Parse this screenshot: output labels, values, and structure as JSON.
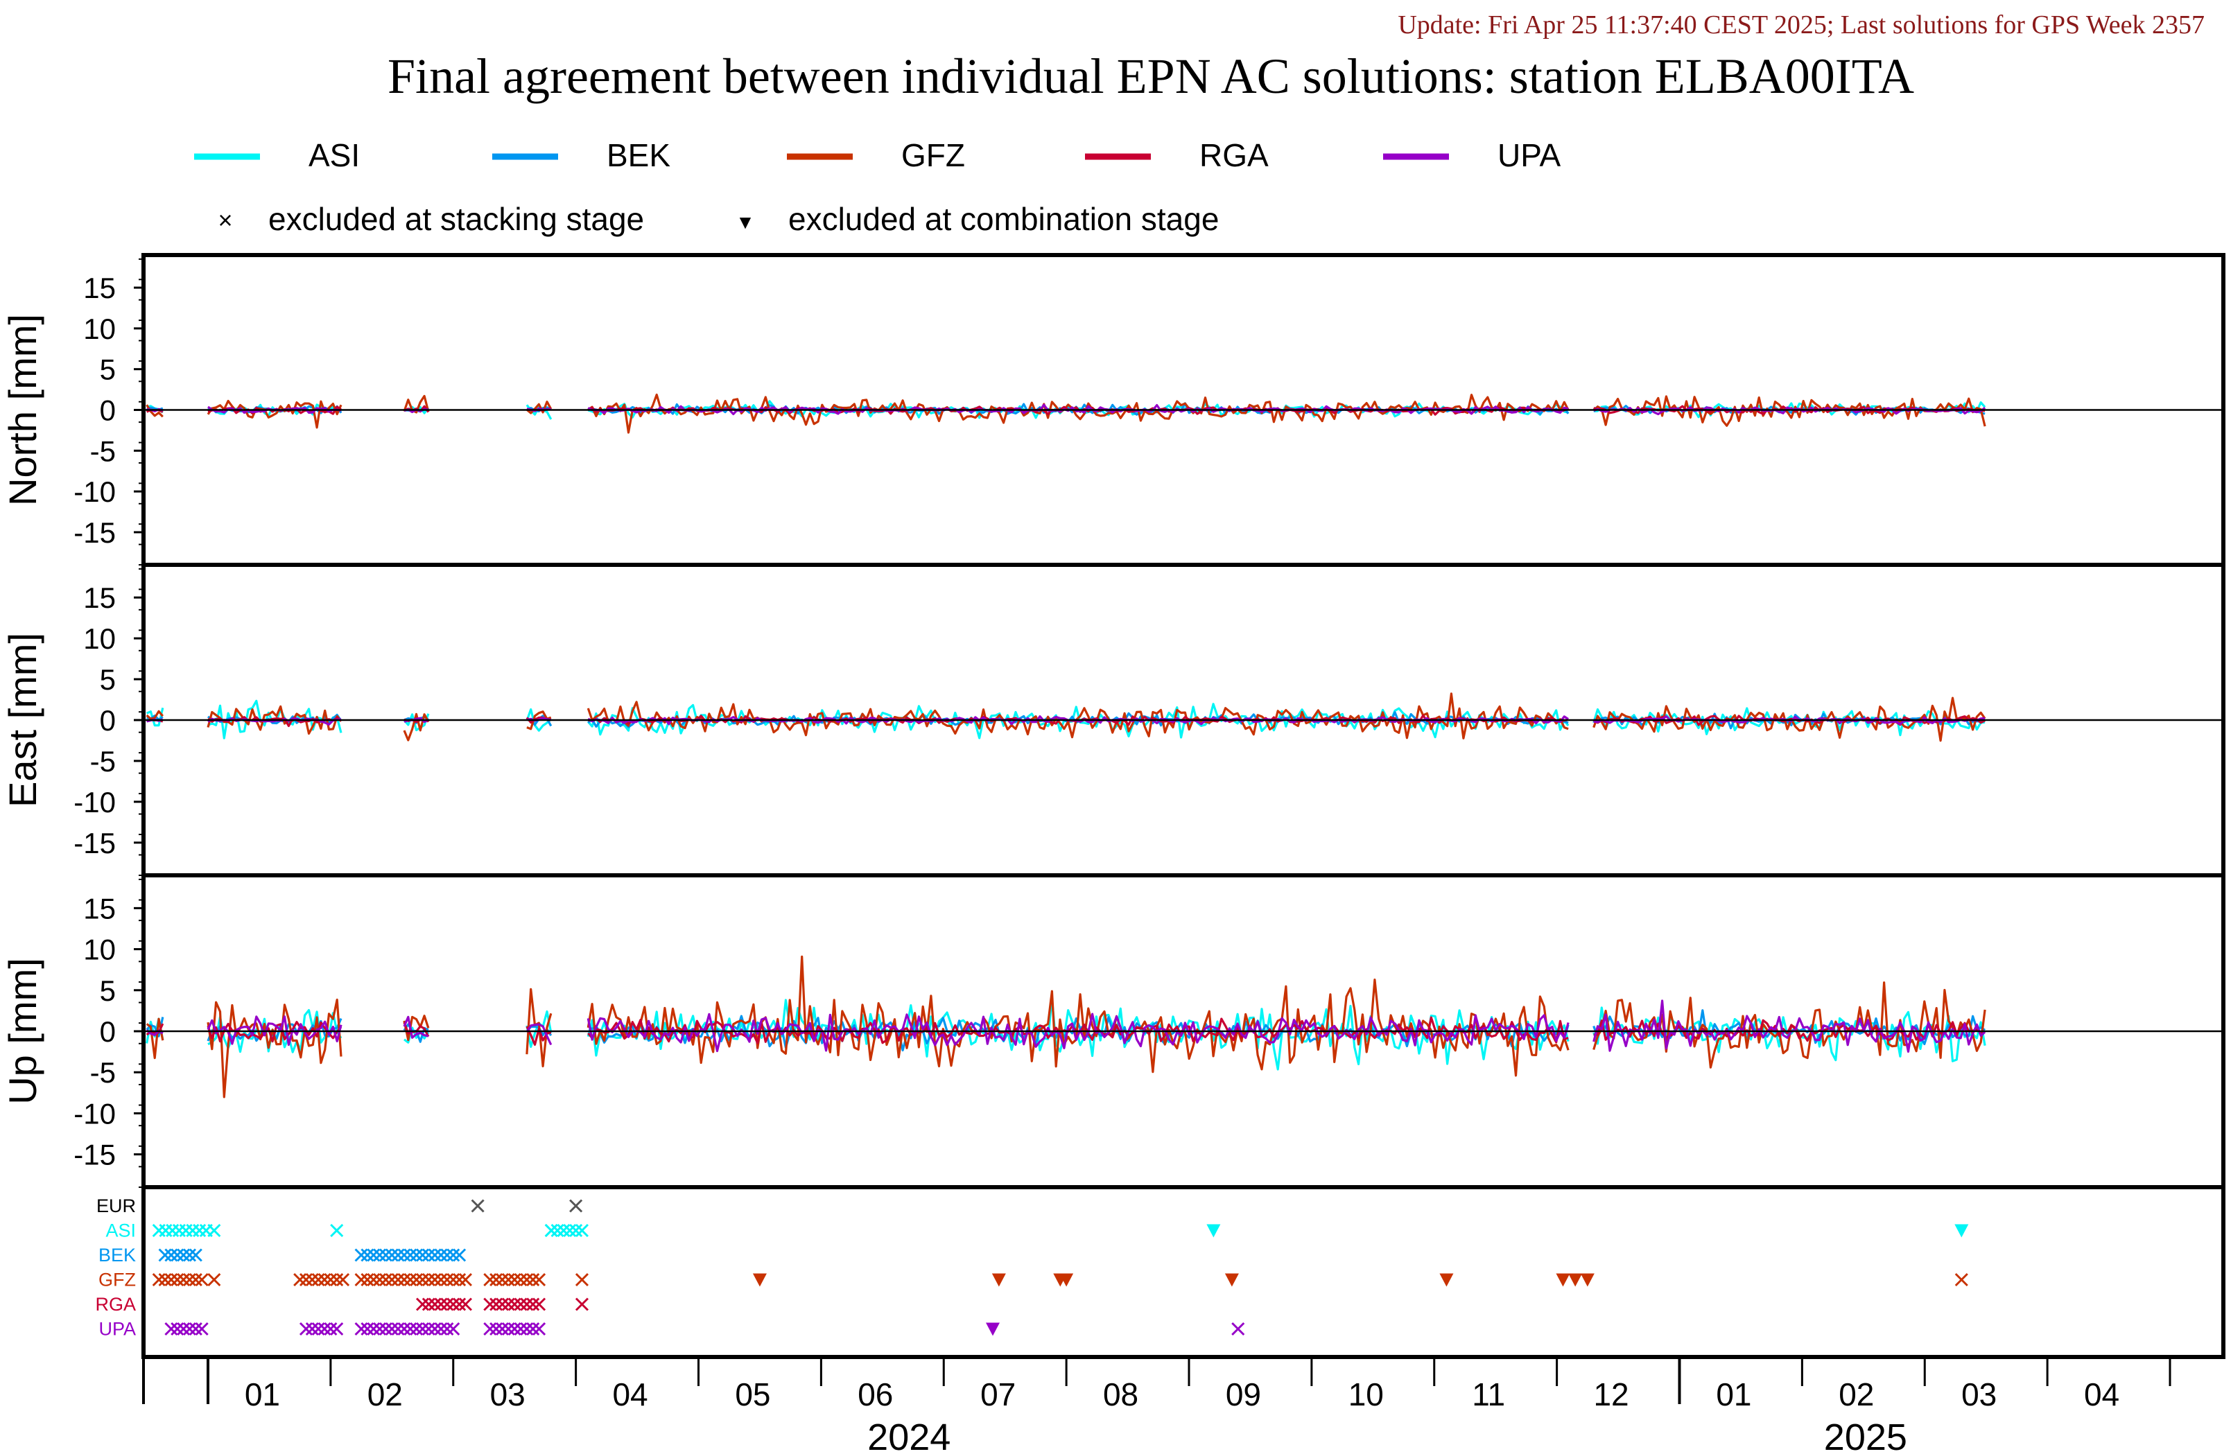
{
  "update_text": "Update: Fri Apr 25 11:37:40 CEST 2025; Last solutions for GPS Week 2357",
  "title": "Final agreement between individual EPN AC solutions: station ELBA00ITA",
  "legend": {
    "series": [
      {
        "name": "ASI",
        "color": "#00f5f5"
      },
      {
        "name": "BEK",
        "color": "#0096f0"
      },
      {
        "name": "GFZ",
        "color": "#c83200"
      },
      {
        "name": "RGA",
        "color": "#c80032"
      },
      {
        "name": "UPA",
        "color": "#9600c8"
      }
    ],
    "markers": [
      {
        "symbol": "×",
        "label": "excluded at stacking stage"
      },
      {
        "symbol": "▼",
        "label": "excluded at combination stage"
      }
    ]
  },
  "chart_data": {
    "type": "line",
    "x_unit": "months Jan 2024 – Apr 2025 (fractional month index, 0 = start of Jan 2024)",
    "xlim": [
      0,
      16
    ],
    "panels": [
      {
        "name": "north",
        "ylabel": "North [mm]",
        "ylim": [
          -19,
          19
        ],
        "yticks": [
          15,
          10,
          5,
          0,
          -5,
          -10,
          -15
        ]
      },
      {
        "name": "east",
        "ylabel": "East [mm]",
        "ylim": [
          -19,
          19
        ],
        "yticks": [
          15,
          10,
          5,
          0,
          -5,
          -10,
          -15
        ]
      },
      {
        "name": "up",
        "ylabel": "Up [mm]",
        "ylim": [
          -19,
          19
        ],
        "yticks": [
          15,
          10,
          5,
          0,
          -5,
          -10,
          -15
        ]
      }
    ],
    "month_ticks": [
      "01",
      "02",
      "03",
      "04",
      "05",
      "06",
      "07",
      "08",
      "09",
      "10",
      "11",
      "12",
      "01",
      "02",
      "03",
      "04"
    ],
    "year_labels": [
      {
        "label": "2024",
        "center": 6.0
      },
      {
        "label": "2025",
        "center": 13.8
      }
    ],
    "year_boundary": 12,
    "data_segments": [
      [
        -0.5,
        -0.35
      ],
      [
        0.0,
        1.1
      ],
      [
        1.6,
        1.8
      ],
      [
        2.6,
        2.8
      ],
      [
        3.1,
        11.1
      ],
      [
        11.3,
        14.5
      ]
    ],
    "series_amplitude": {
      "north": {
        "ASI": 0.6,
        "BEK": 0.4,
        "GFZ": 1.2,
        "RGA": 0.3,
        "UPA": 0.3
      },
      "east": {
        "ASI": 1.3,
        "BEK": 0.5,
        "GFZ": 1.6,
        "RGA": 0.3,
        "UPA": 0.3
      },
      "up": {
        "ASI": 2.2,
        "BEK": 1.3,
        "GFZ": 3.5,
        "RGA": 1.0,
        "UPA": 1.6
      }
    },
    "exclusion_rows": [
      {
        "label": "EUR",
        "color": "#555555",
        "marks": [
          {
            "s": "x",
            "x": [
              2.2,
              3.0
            ]
          }
        ]
      },
      {
        "label": "ASI",
        "color": "#00f5f5",
        "marks": [
          {
            "s": "x",
            "range": [
              -0.4,
              0.0,
              0.055
            ]
          },
          {
            "s": "x",
            "x": [
              0.05,
              1.05,
              2.8,
              3.05
            ]
          },
          {
            "s": "x",
            "range": [
              2.8,
              3.0,
              0.05
            ]
          },
          {
            "s": "v",
            "x": [
              8.2,
              14.3
            ]
          }
        ]
      },
      {
        "label": "BEK",
        "color": "#0096f0",
        "marks": [
          {
            "s": "x",
            "range": [
              -0.35,
              -0.1,
              0.05
            ]
          },
          {
            "s": "x",
            "range": [
              1.25,
              2.05,
              0.05
            ]
          }
        ]
      },
      {
        "label": "GFZ",
        "color": "#c83200",
        "marks": [
          {
            "s": "x",
            "range": [
              -0.4,
              -0.05,
              0.05
            ]
          },
          {
            "s": "x",
            "x": [
              0.05
            ]
          },
          {
            "s": "x",
            "range": [
              0.75,
              1.1,
              0.05
            ]
          },
          {
            "s": "x",
            "range": [
              1.25,
              2.1,
              0.05
            ]
          },
          {
            "s": "x",
            "range": [
              2.3,
              2.7,
              0.05
            ]
          },
          {
            "s": "x",
            "x": [
              3.05,
              14.3
            ]
          },
          {
            "s": "v",
            "x": [
              4.5,
              6.45,
              6.95,
              7.0,
              8.35,
              10.1,
              11.05,
              11.15,
              11.25
            ]
          }
        ]
      },
      {
        "label": "RGA",
        "color": "#c80032",
        "marks": [
          {
            "s": "x",
            "range": [
              1.75,
              2.1,
              0.05
            ]
          },
          {
            "s": "x",
            "range": [
              2.3,
              2.7,
              0.05
            ]
          },
          {
            "s": "x",
            "x": [
              3.05
            ]
          }
        ]
      },
      {
        "label": "UPA",
        "color": "#9600c8",
        "marks": [
          {
            "s": "x",
            "range": [
              -0.3,
              -0.05,
              0.05
            ]
          },
          {
            "s": "x",
            "range": [
              0.8,
              1.05,
              0.05
            ]
          },
          {
            "s": "x",
            "range": [
              1.25,
              2.0,
              0.05
            ]
          },
          {
            "s": "x",
            "range": [
              2.3,
              2.7,
              0.05
            ]
          },
          {
            "s": "v",
            "x": [
              6.4
            ]
          },
          {
            "s": "x",
            "x": [
              8.4
            ]
          }
        ]
      }
    ]
  }
}
